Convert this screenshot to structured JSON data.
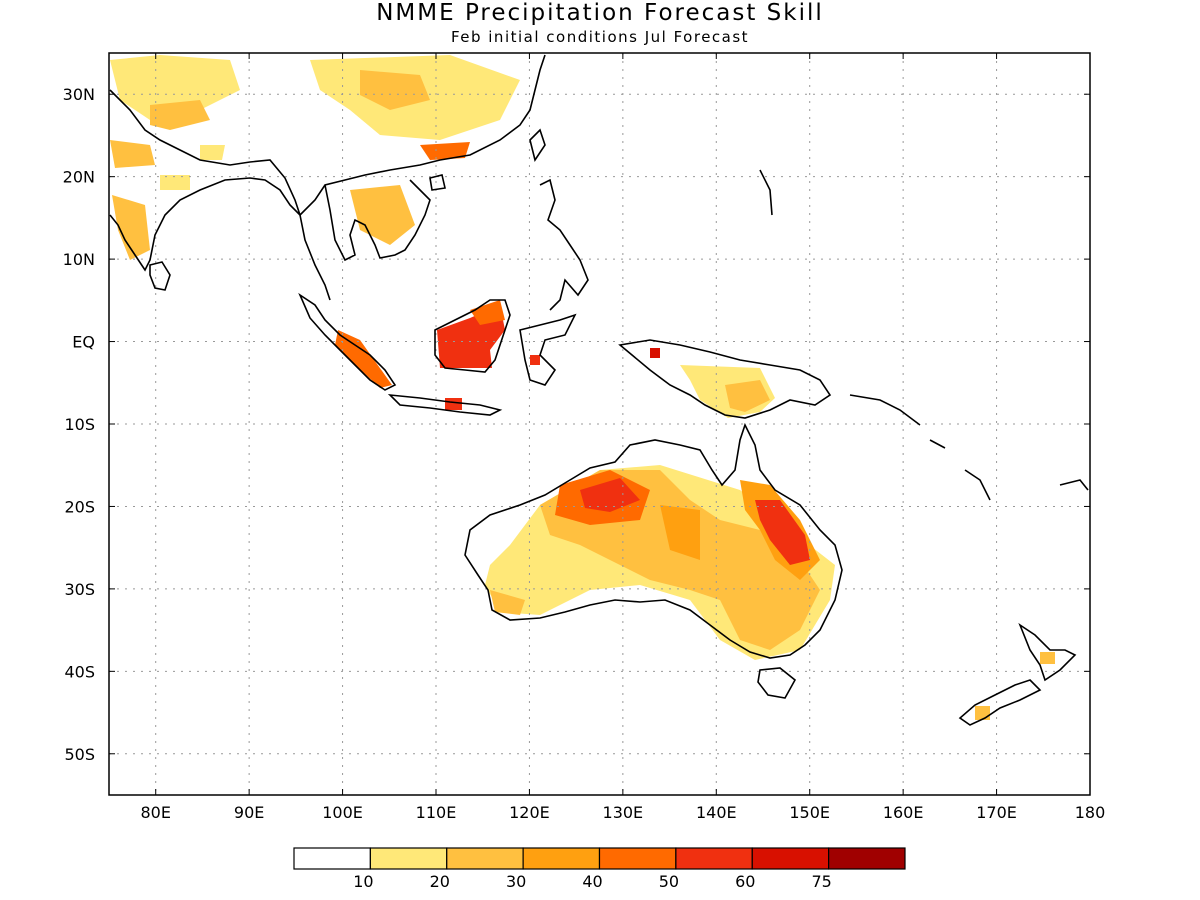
{
  "header": {
    "title": "NMME Precipitation Forecast Skill",
    "subtitle": "Feb initial conditions  Jul Forecast"
  },
  "map": {
    "lon_range": [
      75,
      180
    ],
    "lat_range": [
      -55,
      35
    ],
    "lon_ticks": [
      {
        "value": 80,
        "label": "80E"
      },
      {
        "value": 90,
        "label": "90E"
      },
      {
        "value": 100,
        "label": "100E"
      },
      {
        "value": 110,
        "label": "110E"
      },
      {
        "value": 120,
        "label": "120E"
      },
      {
        "value": 130,
        "label": "130E"
      },
      {
        "value": 140,
        "label": "140E"
      },
      {
        "value": 150,
        "label": "150E"
      },
      {
        "value": 160,
        "label": "160E"
      },
      {
        "value": 170,
        "label": "170E"
      },
      {
        "value": 180,
        "label": "180"
      }
    ],
    "lat_ticks": [
      {
        "value": 30,
        "label": "30N"
      },
      {
        "value": 20,
        "label": "20N"
      },
      {
        "value": 10,
        "label": "10N"
      },
      {
        "value": 0,
        "label": "EQ"
      },
      {
        "value": -10,
        "label": "10S"
      },
      {
        "value": -20,
        "label": "20S"
      },
      {
        "value": -30,
        "label": "30S"
      },
      {
        "value": -40,
        "label": "40S"
      },
      {
        "value": -50,
        "label": "50S"
      }
    ],
    "grid": true
  },
  "colorbar": {
    "colors": [
      "#ffffff",
      "#ffe878",
      "#ffc040",
      "#ffa010",
      "#ff6a00",
      "#f03010",
      "#d81000",
      "#a00000"
    ],
    "labels": [
      "10",
      "20",
      "30",
      "40",
      "50",
      "60",
      "75"
    ]
  }
}
